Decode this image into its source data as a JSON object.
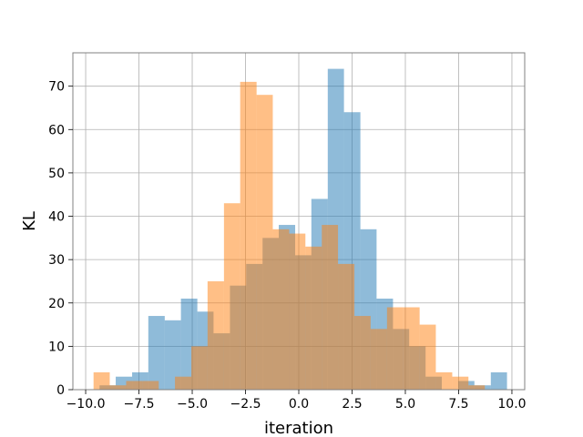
{
  "chart_data": {
    "type": "bar",
    "subtype": "overlapping histogram",
    "title": "",
    "xlabel": "iteration",
    "ylabel": "KL",
    "xlim": [
      -10.6,
      10.6
    ],
    "ylim": [
      0,
      77.7
    ],
    "xticks": [
      -10.0,
      -7.5,
      -5.0,
      -2.5,
      0.0,
      2.5,
      5.0,
      7.5,
      10.0
    ],
    "xtick_labels": [
      "−10.0",
      "−7.5",
      "−5.0",
      "−2.5",
      "0.0",
      "2.5",
      "5.0",
      "7.5",
      "10.0"
    ],
    "yticks": [
      0,
      10,
      20,
      30,
      40,
      50,
      60,
      70
    ],
    "ytick_labels": [
      "0",
      "10",
      "20",
      "30",
      "40",
      "50",
      "60",
      "70"
    ],
    "grid": true,
    "legend": "none",
    "series": [
      {
        "color": "#1f77b4",
        "alpha": 0.5,
        "bin_edges": [
          -9.35,
          -8.59,
          -7.82,
          -7.06,
          -6.29,
          -5.53,
          -4.76,
          -4.0,
          -3.23,
          -2.47,
          -1.7,
          -0.94,
          -0.17,
          0.59,
          1.36,
          2.12,
          2.89,
          3.65,
          4.42,
          5.18,
          5.95,
          6.71,
          7.48,
          8.24,
          9.01,
          9.77
        ],
        "counts": [
          1,
          3,
          4,
          17,
          16,
          21,
          18,
          13,
          24,
          29,
          35,
          38,
          31,
          44,
          74,
          64,
          37,
          21,
          14,
          10,
          3,
          0,
          2,
          1,
          4
        ]
      },
      {
        "color": "#ff7f0e",
        "alpha": 0.5,
        "bin_edges": [
          -9.63,
          -8.87,
          -8.1,
          -7.34,
          -6.57,
          -5.81,
          -5.04,
          -4.28,
          -3.51,
          -2.75,
          -1.98,
          -1.22,
          -0.45,
          0.31,
          1.08,
          1.84,
          2.61,
          3.37,
          4.14,
          4.9,
          5.67,
          6.43,
          7.2,
          7.96,
          8.73,
          9.49
        ],
        "counts": [
          4,
          1,
          2,
          2,
          0,
          3,
          10,
          25,
          43,
          71,
          68,
          37,
          36,
          33,
          38,
          29,
          17,
          14,
          19,
          19,
          15,
          4,
          3,
          1,
          0
        ]
      }
    ]
  }
}
